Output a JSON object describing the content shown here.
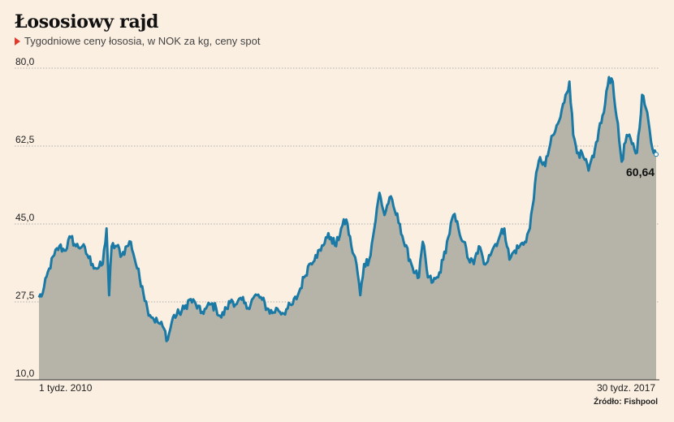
{
  "chart_data": {
    "type": "area",
    "title": "Łososiowy rajd",
    "subtitle": "Tygodniowe ceny łososia, w NOK za kg, ceny spot",
    "x_start_label": "1 tydz. 2010",
    "x_end_label": "30 tydz. 2017",
    "ylim": [
      10,
      80
    ],
    "yticks": [
      "80,0",
      "62,5",
      "45,0",
      "27,5",
      "10,0"
    ],
    "ytick_values": [
      80,
      62.5,
      45,
      27.5,
      10
    ],
    "end_value_label": "60,64",
    "source": "Źródło: Fishpool",
    "grid": true,
    "line_color": "#1a7aa5",
    "fill_color": "#b6b4a8",
    "keypoints": [
      [
        0,
        28.5
      ],
      [
        3,
        29.5
      ],
      [
        8,
        35
      ],
      [
        12,
        38
      ],
      [
        16,
        40
      ],
      [
        20,
        39
      ],
      [
        25,
        42
      ],
      [
        29,
        40
      ],
      [
        34,
        40
      ],
      [
        38,
        38
      ],
      [
        42,
        36
      ],
      [
        46,
        35
      ],
      [
        50,
        36
      ],
      [
        53,
        44
      ],
      [
        55,
        29
      ],
      [
        57,
        40
      ],
      [
        61,
        40
      ],
      [
        65,
        38
      ],
      [
        69,
        40
      ],
      [
        72,
        41
      ],
      [
        77,
        35
      ],
      [
        81,
        31
      ],
      [
        85,
        26
      ],
      [
        89,
        24
      ],
      [
        93,
        23
      ],
      [
        97,
        22
      ],
      [
        101,
        19
      ],
      [
        105,
        24
      ],
      [
        110,
        25
      ],
      [
        114,
        26
      ],
      [
        118,
        28
      ],
      [
        123,
        27
      ],
      [
        127,
        25
      ],
      [
        131,
        26
      ],
      [
        135,
        27
      ],
      [
        139,
        26
      ],
      [
        143,
        24
      ],
      [
        147,
        26
      ],
      [
        151,
        28
      ],
      [
        155,
        27
      ],
      [
        159,
        28
      ],
      [
        163,
        26
      ],
      [
        167,
        28
      ],
      [
        171,
        29
      ],
      [
        175,
        28
      ],
      [
        179,
        26
      ],
      [
        183,
        25
      ],
      [
        187,
        26
      ],
      [
        191,
        25
      ],
      [
        195,
        26
      ],
      [
        199,
        27
      ],
      [
        203,
        29
      ],
      [
        208,
        33
      ],
      [
        212,
        36
      ],
      [
        217,
        38
      ],
      [
        221,
        39
      ],
      [
        225,
        42
      ],
      [
        229,
        42
      ],
      [
        233,
        40
      ],
      [
        237,
        44
      ],
      [
        241,
        46
      ],
      [
        245,
        40
      ],
      [
        249,
        36
      ],
      [
        252,
        29
      ],
      [
        255,
        36
      ],
      [
        259,
        37
      ],
      [
        263,
        44
      ],
      [
        267,
        52
      ],
      [
        271,
        47
      ],
      [
        275,
        51
      ],
      [
        279,
        48
      ],
      [
        283,
        45
      ],
      [
        287,
        40
      ],
      [
        291,
        37
      ],
      [
        295,
        34
      ],
      [
        298,
        33
      ],
      [
        301,
        41
      ],
      [
        305,
        33
      ],
      [
        309,
        32
      ],
      [
        313,
        33
      ],
      [
        317,
        37
      ],
      [
        321,
        42
      ],
      [
        325,
        47
      ],
      [
        329,
        44
      ],
      [
        333,
        41
      ],
      [
        337,
        37
      ],
      [
        341,
        36
      ],
      [
        345,
        40
      ],
      [
        349,
        36
      ],
      [
        353,
        38
      ],
      [
        357,
        40
      ],
      [
        361,
        42
      ],
      [
        365,
        44
      ],
      [
        369,
        37
      ],
      [
        373,
        39
      ],
      [
        377,
        40
      ],
      [
        381,
        41
      ],
      [
        385,
        44
      ],
      [
        389,
        54
      ],
      [
        393,
        60
      ],
      [
        397,
        58
      ],
      [
        401,
        63
      ],
      [
        405,
        66
      ],
      [
        409,
        69
      ],
      [
        413,
        74
      ],
      [
        416,
        77
      ],
      [
        419,
        65
      ],
      [
        423,
        61
      ],
      [
        427,
        60
      ],
      [
        431,
        57
      ],
      [
        435,
        60
      ],
      [
        439,
        66
      ],
      [
        443,
        70
      ],
      [
        447,
        78
      ],
      [
        450,
        77
      ],
      [
        453,
        69
      ],
      [
        457,
        59
      ],
      [
        461,
        65
      ],
      [
        465,
        63
      ],
      [
        469,
        61
      ],
      [
        473,
        74
      ],
      [
        476,
        71
      ],
      [
        479,
        66
      ],
      [
        481,
        62
      ],
      [
        483,
        61.5
      ],
      [
        484,
        60.64
      ]
    ]
  }
}
